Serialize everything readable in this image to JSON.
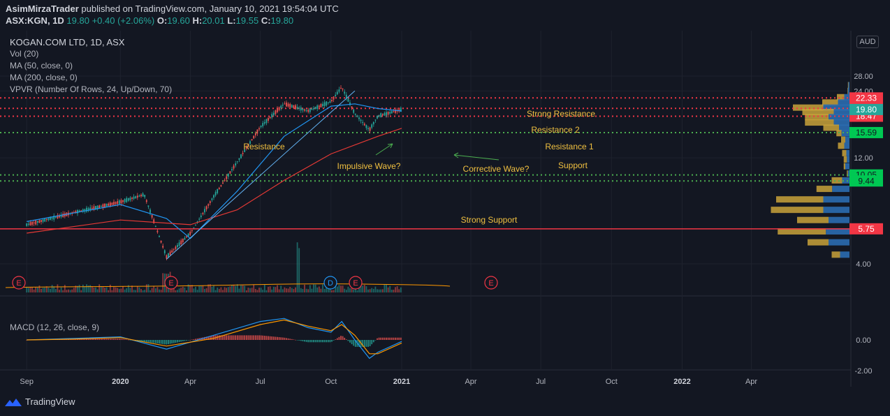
{
  "header": {
    "publisher": "AsimMirzaTrader",
    "published_text": "published on TradingView.com, January 10, 2021 19:54:04 UTC",
    "ticker": "ASX:KGN, 1D",
    "last": "19.80",
    "change": "+0.40 (+2.06%)",
    "open_label": "O:",
    "open": "19.60",
    "high_label": "H:",
    "high": "20.01",
    "low_label": "L:",
    "low": "19.55",
    "close_label": "C:",
    "close": "19.80"
  },
  "legend": {
    "symbol": "KOGAN.COM LTD, 1D, ASX",
    "vol": "Vol (20)",
    "ma50": "MA (50, close, 0)",
    "ma200": "MA (200, close, 0)",
    "vpvr": "VPVR (Number Of Rows, 24, Up/Down, 70)",
    "macd": "MACD (12, 26, close, 9)"
  },
  "currency": "AUD",
  "footer": {
    "brand": "TradingView",
    "logo_icon": "tradingview-logo-icon"
  },
  "colors": {
    "up": "#26a69a",
    "down": "#ef5350",
    "ma50": "#2196f3",
    "ma200": "#e53935",
    "resistance": "#f23645",
    "support": "#4caf50",
    "annotation": "#f0c040",
    "macd": "#2196f3",
    "signal": "#ff9800"
  },
  "chart_data": [
    {
      "type": "candlestick",
      "title": "KOGAN.COM LTD, 1D, ASX",
      "x_axis_labels": [
        "Sep",
        "2020",
        "Apr",
        "Jul",
        "Oct",
        "2021",
        "Apr",
        "Jul",
        "Oct",
        "2022",
        "Apr"
      ],
      "y_axis_ticks": [
        "28.00",
        "24.00",
        "12.00",
        "4.00"
      ],
      "ylim": [
        3,
        30
      ],
      "log_scale": true,
      "series": [
        {
          "name": "Price",
          "x": [
            "2019-09",
            "2019-11",
            "2020-01",
            "2020-02",
            "2020-03",
            "2020-04",
            "2020-05",
            "2020-06",
            "2020-07",
            "2020-08",
            "2020-09",
            "2020-10",
            "2020-10-15",
            "2020-11",
            "2020-11-20",
            "2020-12",
            "2021-01"
          ],
          "values": [
            6.0,
            6.8,
            7.6,
            8.2,
            4.3,
            5.5,
            8.0,
            11.5,
            16.5,
            21.0,
            19.5,
            21.5,
            25.0,
            19.0,
            16.0,
            18.5,
            19.8
          ]
        },
        {
          "name": "MA 50",
          "x": [
            "2019-09",
            "2020-01",
            "2020-03",
            "2020-04",
            "2020-06",
            "2020-08",
            "2020-10",
            "2020-11",
            "2020-12",
            "2021-01"
          ],
          "values": [
            6.2,
            7.4,
            6.4,
            5.2,
            8.5,
            15.0,
            20.5,
            21.0,
            20.0,
            19.5
          ]
        },
        {
          "name": "MA 200",
          "x": [
            "2019-09",
            "2020-01",
            "2020-04",
            "2020-06",
            "2020-08",
            "2020-10",
            "2020-12",
            "2021-01"
          ],
          "values": [
            5.5,
            6.3,
            6.0,
            7.0,
            9.5,
            12.5,
            15.0,
            16.3
          ]
        }
      ],
      "trendline": {
        "x": [
          "2020-03",
          "2020-11"
        ],
        "values": [
          4.2,
          24.0
        ]
      },
      "levels": [
        {
          "label": "Strong Resistance",
          "value": 22.33,
          "color": "#f23645",
          "axis_label": "22.33"
        },
        {
          "label": "Resistance 2",
          "value": 20.03,
          "color": "#f23645",
          "axis_label": "20.03"
        },
        {
          "label": "Resistance 1",
          "value": 18.47,
          "color": "#f23645",
          "axis_label": "18.47"
        },
        {
          "label": "Support",
          "value": 15.59,
          "color": "#4caf50",
          "axis_label": "15.59"
        },
        {
          "label": "Strong Support",
          "value": 10.05,
          "color": "#4caf50",
          "axis_label": "10.05"
        },
        {
          "label": "",
          "value": 9.44,
          "color": "#4caf50",
          "axis_label": "9.44"
        },
        {
          "label": "",
          "value": 5.75,
          "color": "#f23645",
          "axis_label": "5.75"
        }
      ],
      "current_price": {
        "value": 19.8,
        "axis_label": "19.80",
        "color": "#26a69a"
      },
      "annotations": [
        "Resistance",
        "Impulsive Wave?",
        "Corrective Wave?",
        "Strong Resistance",
        "Resistance 2",
        "Resistance 1",
        "Support",
        "Strong Support"
      ],
      "event_markers": [
        "E",
        "E",
        "D",
        "E",
        "E"
      ],
      "volume_profile_rows": [
        {
          "price": 25.5,
          "up": 2,
          "down": 1
        },
        {
          "price": 24.0,
          "up": 3,
          "down": 1
        },
        {
          "price": 22.5,
          "up": 10,
          "down": 14
        },
        {
          "price": 21.3,
          "up": 22,
          "down": 30
        },
        {
          "price": 20.2,
          "up": 50,
          "down": 58
        },
        {
          "price": 19.3,
          "up": 30,
          "down": 60
        },
        {
          "price": 18.3,
          "up": 40,
          "down": 45
        },
        {
          "price": 17.3,
          "up": 30,
          "down": 55
        },
        {
          "price": 16.4,
          "up": 20,
          "down": 30
        },
        {
          "price": 15.5,
          "up": 15,
          "down": 10
        },
        {
          "price": 14.5,
          "up": 8,
          "down": 8
        },
        {
          "price": 13.6,
          "up": 10,
          "down": 12
        },
        {
          "price": 12.6,
          "up": 6,
          "down": 8
        },
        {
          "price": 11.8,
          "up": 5,
          "down": 6
        },
        {
          "price": 11.0,
          "up": 8,
          "down": 3
        },
        {
          "price": 10.2,
          "up": 3,
          "down": 2
        },
        {
          "price": 9.5,
          "up": 14,
          "down": 20
        },
        {
          "price": 8.7,
          "up": 33,
          "down": 30
        },
        {
          "price": 7.8,
          "up": 50,
          "down": 90
        },
        {
          "price": 7.0,
          "up": 50,
          "down": 100
        },
        {
          "price": 6.3,
          "up": 40,
          "down": 60
        },
        {
          "price": 5.6,
          "up": 45,
          "down": 92
        },
        {
          "price": 5.0,
          "up": 40,
          "down": 40
        },
        {
          "price": 4.4,
          "up": 18,
          "down": 16
        }
      ]
    },
    {
      "type": "line",
      "title": "MACD (12, 26, close, 9)",
      "y_axis_ticks": [
        "0.00",
        "-2.00"
      ],
      "ylim": [
        -2.4,
        2.0
      ],
      "series": [
        {
          "name": "MACD",
          "x": [
            "2019-09",
            "2019-11",
            "2020-01",
            "2020-03",
            "2020-05",
            "2020-07",
            "2020-08",
            "2020-09",
            "2020-10",
            "2020-10-15",
            "2020-11",
            "2020-11-20",
            "2020-12",
            "2021-01"
          ],
          "values": [
            0.0,
            0.1,
            0.2,
            -0.6,
            0.3,
            1.2,
            1.4,
            0.8,
            0.5,
            1.2,
            0.0,
            -1.2,
            -0.8,
            -0.1
          ]
        },
        {
          "name": "Signal",
          "x": [
            "2019-09",
            "2019-11",
            "2020-01",
            "2020-03",
            "2020-05",
            "2020-07",
            "2020-08",
            "2020-09",
            "2020-10",
            "2020-10-15",
            "2020-11",
            "2020-11-20",
            "2020-12",
            "2021-01"
          ],
          "values": [
            0.0,
            0.05,
            0.15,
            -0.4,
            0.1,
            1.0,
            1.3,
            0.9,
            0.6,
            1.0,
            0.3,
            -0.9,
            -0.9,
            -0.2
          ]
        }
      ]
    }
  ]
}
